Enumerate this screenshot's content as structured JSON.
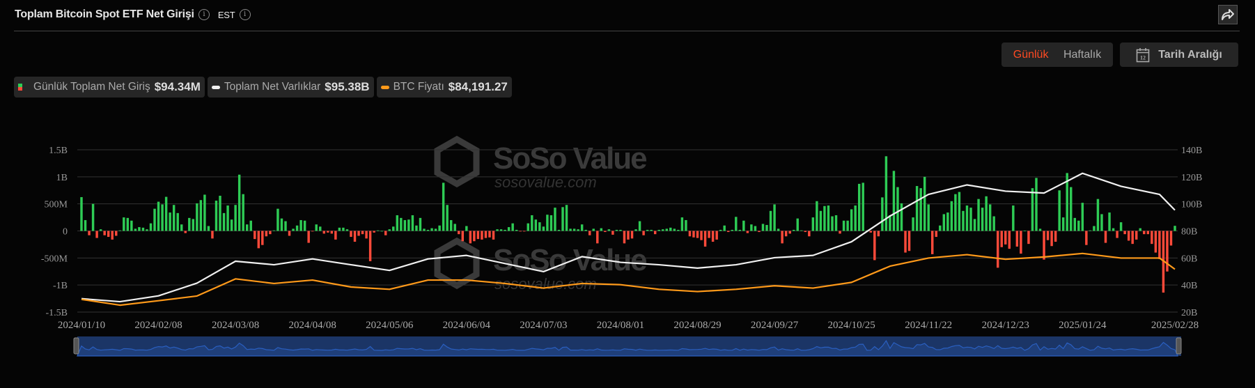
{
  "header": {
    "title": "Toplam Bitcoin Spot ETF Net Girişi",
    "info_icon": "info-icon",
    "timezone": "EST",
    "share_icon": "share-icon"
  },
  "controls": {
    "daily": "Günlük",
    "weekly": "Haftalık",
    "active": "Günlük",
    "date_range": "Tarih Aralığı",
    "calendar_day": "12"
  },
  "legend": [
    {
      "label": "Günlük Toplam Net Giriş",
      "value": "$94.34M"
    },
    {
      "label": "Toplam Net Varlıklar",
      "value": "$95.38B"
    },
    {
      "label": "BTC Fiyatı",
      "value": "$84,191.27"
    }
  ],
  "watermark": {
    "text": "SoSo Value",
    "url": "sosovalue.com"
  },
  "colors": {
    "inflow": "#2ecc55",
    "outflow": "#ff4a3a",
    "net_assets": "#f0f0f0",
    "btc_price": "#ff9a1a",
    "navigator": "#2a5fc0",
    "active": "#ff4a22"
  },
  "chart_data": {
    "type": "bar+line",
    "x_ticks": [
      "2024/01/10",
      "2024/02/08",
      "2024/03/08",
      "2024/04/08",
      "2024/05/06",
      "2024/06/04",
      "2024/07/03",
      "2024/08/01",
      "2024/08/29",
      "2024/09/27",
      "2024/10/25",
      "2024/11/22",
      "2024/12/23",
      "2025/01/24",
      "2025/02/28"
    ],
    "left_axis": {
      "ticks": [
        "1.5B",
        "1B",
        "500M",
        "0",
        "-500M",
        "-1B",
        "-1.5B"
      ],
      "range_millions": [
        -1500,
        1500
      ]
    },
    "right_axis": {
      "ticks": [
        "140B",
        "120B",
        "100B",
        "80B",
        "60B",
        "40B",
        "20B"
      ],
      "range_billions": [
        20,
        140
      ]
    },
    "grid": true,
    "daily_net_inflow_millions": [
      625,
      200,
      -80,
      500,
      -130,
      30,
      -80,
      -110,
      -160,
      -90,
      10,
      250,
      240,
      190,
      40,
      70,
      60,
      30,
      140,
      410,
      540,
      490,
      630,
      340,
      480,
      330,
      120,
      -40,
      240,
      220,
      510,
      570,
      670,
      90,
      -140,
      560,
      650,
      330,
      470,
      210,
      480,
      1040,
      680,
      120,
      190,
      -150,
      -320,
      -260,
      -100,
      -60,
      10,
      410,
      230,
      180,
      -90,
      40,
      100,
      200,
      190,
      -220,
      -10,
      120,
      80,
      -50,
      -30,
      -50,
      -160,
      60,
      60,
      30,
      -110,
      -200,
      -90,
      -60,
      -140,
      -560,
      -30,
      10,
      0,
      -80,
      30,
      80,
      290,
      240,
      200,
      210,
      290,
      100,
      240,
      40,
      20,
      50,
      40,
      100,
      890,
      480,
      200,
      130,
      -60,
      -190,
      90,
      -230,
      -190,
      -150,
      -160,
      -130,
      -120,
      -160,
      30,
      30,
      20,
      70,
      140,
      20,
      -10,
      -10,
      140,
      290,
      210,
      160,
      80,
      300,
      290,
      430,
      20,
      440,
      480,
      40,
      40,
      30,
      120,
      20,
      -80,
      40,
      -230,
      50,
      -20,
      30,
      -70,
      20,
      20,
      -230,
      -160,
      -140,
      30,
      180,
      -80,
      20,
      20,
      -60,
      20,
      30,
      40,
      60,
      40,
      20,
      250,
      200,
      -100,
      -120,
      -130,
      -170,
      -290,
      -130,
      -200,
      -160,
      20,
      100,
      -20,
      20,
      260,
      20,
      190,
      -40,
      120,
      90,
      -20,
      130,
      110,
      370,
      490,
      40,
      -230,
      -100,
      -50,
      20,
      230,
      10,
      -20,
      -100,
      250,
      550,
      370,
      460,
      470,
      270,
      290,
      -50,
      190,
      190,
      400,
      470,
      870,
      890,
      10,
      -30,
      -540,
      -100,
      620,
      1380,
      290,
      1110,
      810,
      510,
      -400,
      -370,
      250,
      830,
      790,
      1000,
      490,
      -430,
      -110,
      100,
      310,
      340,
      550,
      680,
      720,
      370,
      470,
      430,
      220,
      590,
      430,
      640,
      490,
      270,
      -680,
      -300,
      -250,
      -330,
      470,
      -290,
      -420,
      5,
      -240,
      790,
      980,
      40,
      -530,
      -170,
      -280,
      -200,
      750,
      250,
      1070,
      810,
      240,
      190,
      520,
      -260,
      10,
      90,
      590,
      310,
      -220,
      340,
      50,
      -130,
      160,
      -60,
      -180,
      -240,
      -160,
      50,
      -60,
      -60,
      -240,
      -400,
      -520,
      -1140,
      -750,
      -270,
      94.34
    ],
    "line_sample_every_n_bars": 10,
    "series": [
      {
        "name": "Toplam Net Varlıklar",
        "axis": "right",
        "unit": "B",
        "values": [
          29.9,
          27.7,
          32,
          41.4,
          57.6,
          55,
          59.3,
          55,
          50.8,
          59.3,
          61.9,
          55.9,
          49.9,
          61,
          56.8,
          55,
          52.5,
          55,
          60.2,
          61.9,
          72,
          91,
          107,
          114,
          109.4,
          108,
          122.6,
          113,
          107,
          95.38
        ]
      },
      {
        "name": "BTC Fiyatı",
        "axis": "hidden",
        "unit": "USD",
        "scale_range": [
          30750,
          233110
        ],
        "values": [
          46600,
          39350,
          44910,
          50800,
          72150,
          66410,
          70630,
          62030,
          59160,
          70630,
          70630,
          66410,
          60680,
          66410,
          64890,
          59160,
          56300,
          59160,
          63540,
          60680,
          67770,
          88000,
          98120,
          102340,
          96600,
          99470,
          103850,
          98120,
          98120,
          84191.27
        ]
      }
    ]
  }
}
